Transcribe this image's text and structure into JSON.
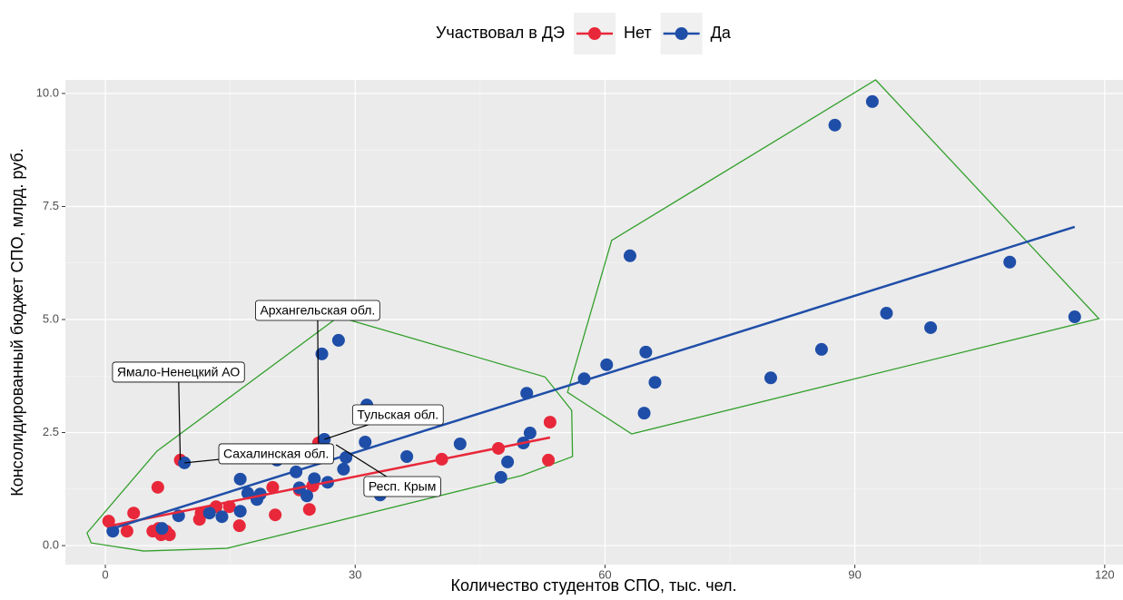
{
  "chart_data": {
    "type": "scatter",
    "x_label": "Количество студентов СПО, тыс. чел.",
    "y_label": "Консолидированный бюджет СПО, млрд. руб.",
    "legend_title": "Участвовал в ДЭ",
    "legend_position": "top",
    "grid": true,
    "xlim": [
      -4.8,
      122.2
    ],
    "ylim": [
      -0.42,
      10.3
    ],
    "xticks": [
      0,
      30,
      60,
      90,
      120
    ],
    "yticks": [
      {
        "value": 0,
        "label": "0.0"
      },
      {
        "value": 2.5,
        "label": "2.5"
      },
      {
        "value": 5,
        "label": "5.0"
      },
      {
        "value": 7.5,
        "label": "7.5"
      },
      {
        "value": 10,
        "label": "10.0"
      }
    ],
    "series": [
      {
        "name": "Нет",
        "color": "#e8283a",
        "x": [
          0.4,
          2.6,
          3.4,
          6.3,
          5.7,
          6.4,
          6.7,
          7.3,
          7.7,
          9.0,
          11.3,
          11.5,
          13.3,
          14.9,
          16.1,
          20.1,
          20.4,
          23.3,
          24.5,
          24.9,
          25.6,
          40.4,
          47.2,
          53.2,
          53.4
        ],
        "y": [
          0.54,
          0.32,
          0.72,
          1.29,
          0.32,
          0.38,
          0.24,
          0.32,
          0.24,
          1.89,
          0.58,
          0.72,
          0.86,
          0.86,
          0.44,
          1.29,
          0.68,
          1.23,
          0.8,
          1.32,
          2.27,
          1.91,
          2.15,
          1.89,
          2.73
        ],
        "line": {
          "x": [
            0.1,
            53.4
          ],
          "y": [
            0.42,
            2.39
          ]
        }
      },
      {
        "name": "Да",
        "color": "#1f4ea8",
        "x": [
          0.9,
          6.8,
          8.8,
          9.5,
          12.5,
          14.0,
          16.2,
          16.2,
          17.1,
          18.2,
          18.6,
          20.6,
          22.9,
          23.3,
          24.2,
          25.1,
          26.0,
          26.3,
          28.0,
          31.4,
          31.2,
          28.9,
          28.6,
          26.7,
          33.0,
          36.2,
          42.6,
          47.5,
          48.3,
          50.2,
          50.6,
          51.0,
          57.5,
          60.2,
          63.0,
          64.9,
          64.7,
          66.0,
          79.9,
          86.0,
          87.6,
          92.1,
          93.8,
          99.1,
          108.6,
          116.4
        ],
        "y": [
          0.32,
          0.38,
          0.66,
          1.83,
          0.72,
          0.64,
          1.47,
          0.76,
          1.16,
          1.02,
          1.14,
          1.89,
          1.63,
          1.28,
          1.1,
          1.48,
          4.24,
          2.35,
          4.54,
          3.11,
          2.29,
          1.95,
          1.69,
          1.4,
          1.12,
          1.97,
          2.25,
          1.51,
          1.85,
          2.27,
          3.37,
          2.49,
          3.69,
          4.0,
          6.41,
          4.28,
          2.93,
          3.61,
          3.71,
          4.34,
          9.3,
          9.82,
          5.14,
          4.82,
          6.27,
          5.06
        ],
        "line": {
          "x": [
            0.9,
            116.4
          ],
          "y": [
            0.38,
            7.05
          ]
        }
      }
    ],
    "hulls": [
      {
        "color": "#33a02c",
        "x": [
          -2.2,
          6.2,
          28.0,
          52.8,
          56.0,
          56.1,
          50.0,
          14.6,
          4.6,
          -1.7
        ],
        "y": [
          0.28,
          2.09,
          5.06,
          3.73,
          2.99,
          1.97,
          1.55,
          -0.06,
          -0.12,
          0.06
        ]
      },
      {
        "color": "#33a02c",
        "x": [
          55.5,
          60.8,
          92.5,
          119.3,
          63.2
        ],
        "y": [
          3.39,
          6.75,
          10.3,
          5.02,
          2.47
        ]
      }
    ],
    "annotations": [
      {
        "text": "Ямало-Ненецкий АО",
        "x": 9.0,
        "y": 1.89
      },
      {
        "text": "Архангельская обл.",
        "x": 25.6,
        "y": 2.27
      },
      {
        "text": "Тульская обл.",
        "x": 26.3,
        "y": 2.35
      },
      {
        "text": "Сахалинская обл.",
        "x": 9.5,
        "y": 1.83
      },
      {
        "text": "Респ. Крым",
        "x": 27.7,
        "y": 2.23
      }
    ]
  }
}
